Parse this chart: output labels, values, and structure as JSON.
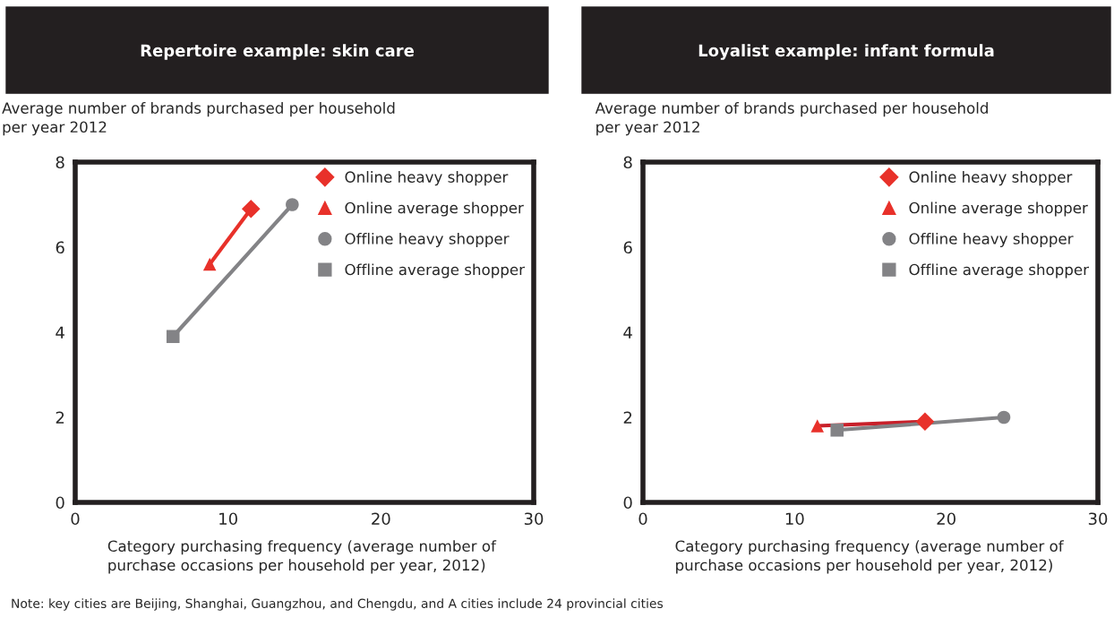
{
  "chart_data": [
    {
      "type": "scatter",
      "title": "Repertoire example: skin care",
      "ylabel": "Average number of brands purchased per household\nper year 2012",
      "xlabel": "Category purchasing frequency (average number of\npurchase occasions per household per year, 2012)",
      "xlim": [
        0,
        30
      ],
      "ylim": [
        0,
        8
      ],
      "xticks": [
        0,
        10,
        20,
        30
      ],
      "yticks": [
        0,
        2,
        4,
        6,
        8
      ],
      "grid": false,
      "legend": "top right",
      "series": [
        {
          "type": "line",
          "color": "#e8312a",
          "x": [
            8.8,
            11.5
          ],
          "values": [
            5.6,
            6.9
          ],
          "marker": "none"
        },
        {
          "type": "line",
          "color": "#838386",
          "x": [
            6.4,
            14.2
          ],
          "values": [
            3.9,
            7.0
          ],
          "marker": "none"
        },
        {
          "name": "Online heavy shopper",
          "color": "#e8312a",
          "x": [
            11.5
          ],
          "values": [
            6.9
          ],
          "marker": "diamond"
        },
        {
          "name": "Online average shopper",
          "color": "#e8312a",
          "x": [
            8.8
          ],
          "values": [
            5.6
          ],
          "marker": "triangle"
        },
        {
          "name": "Offline heavy shopper",
          "color": "#838386",
          "x": [
            14.2
          ],
          "values": [
            7.0
          ],
          "marker": "circle"
        },
        {
          "name": "Offline average shopper",
          "color": "#838386",
          "x": [
            6.4
          ],
          "values": [
            3.9
          ],
          "marker": "square"
        }
      ]
    },
    {
      "type": "scatter",
      "title": "Loyalist example: infant formula",
      "ylabel": "Average number of brands purchased per household\nper year 2012",
      "xlabel": "Category purchasing frequency (average number of\npurchase occasions per household per year, 2012)",
      "xlim": [
        0,
        30
      ],
      "ylim": [
        0,
        8
      ],
      "xticks": [
        0,
        10,
        20,
        30
      ],
      "yticks": [
        0,
        2,
        4,
        6,
        8
      ],
      "grid": false,
      "legend": "top right",
      "annotations": [
        "Note: key cities are Beijing, Shanghai, Guangzhou, and Chengdu, and A cities include 24 provincial cities"
      ],
      "series": [
        {
          "type": "line",
          "color": "#c8202a",
          "x": [
            11.5,
            18.6
          ],
          "values": [
            1.8,
            1.9
          ],
          "marker": "none"
        },
        {
          "type": "line",
          "color": "#838386",
          "x": [
            12.8,
            23.8
          ],
          "values": [
            1.7,
            2.0
          ],
          "marker": "none"
        },
        {
          "name": "Online heavy shopper",
          "color": "#e8312a",
          "x": [
            18.6
          ],
          "values": [
            1.9
          ],
          "marker": "diamond"
        },
        {
          "name": "Online average shopper",
          "color": "#e8312a",
          "x": [
            11.5
          ],
          "values": [
            1.8
          ],
          "marker": "triangle"
        },
        {
          "name": "Offline heavy shopper",
          "color": "#838386",
          "x": [
            23.8
          ],
          "values": [
            2.0
          ],
          "marker": "circle"
        },
        {
          "name": "Offline average shopper",
          "color": "#838386",
          "x": [
            12.8
          ],
          "values": [
            1.7
          ],
          "marker": "square"
        }
      ]
    }
  ]
}
